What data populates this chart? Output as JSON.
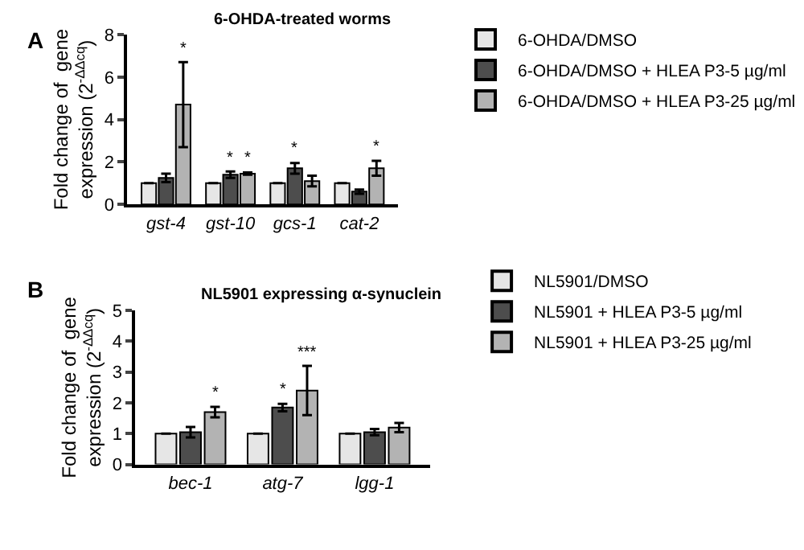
{
  "chart_data": [
    {
      "type": "bar",
      "title": "6-OHDA-treated worms",
      "ylabel": "Fold change of  gene expression (2$^{-ΔΔcq}$)",
      "annotations": [
        "A"
      ],
      "categories": [
        "gst-4",
        "gst-10",
        "gcs-1",
        "cat-2"
      ],
      "ylim": [
        0,
        8
      ],
      "yticks": [
        0,
        2,
        4,
        6,
        8
      ],
      "legend": "top right",
      "series": [
        {
          "name": "6-OHDA/DMSO",
          "color": "#e6e6e6",
          "values": [
            1.0,
            1.0,
            1.0,
            1.0
          ],
          "errors": [
            null,
            null,
            null,
            null
          ],
          "value_labels": [
            null,
            null,
            null,
            null
          ]
        },
        {
          "name": "6-OHDA/DMSO + HLEA P3-5 µg/ml",
          "color": "#4d4d4d",
          "values": [
            1.25,
            1.4,
            1.7,
            0.6
          ],
          "errors": [
            0.2,
            0.15,
            0.25,
            0.1
          ],
          "value_labels": [
            null,
            "*",
            "*",
            null
          ]
        },
        {
          "name": "6-OHDA/DMSO + HLEA P3-25 µg/ml",
          "color": "#b3b3b3",
          "values": [
            4.7,
            1.45,
            1.1,
            1.7
          ],
          "errors": [
            2.0,
            0.05,
            0.25,
            0.35
          ],
          "value_labels": [
            "*",
            "*",
            null,
            "*"
          ]
        }
      ]
    },
    {
      "type": "bar",
      "title": "NL5901 expressing α-synuclein",
      "ylabel": "Fold change of  gene expression (2$^{-ΔΔcq}$)",
      "annotations": [
        "B"
      ],
      "categories": [
        "bec-1",
        "atg-7",
        "lgg-1"
      ],
      "ylim": [
        0,
        5
      ],
      "yticks": [
        0,
        1,
        2,
        3,
        4,
        5
      ],
      "legend": "top right",
      "series": [
        {
          "name": "NL5901/DMSO",
          "color": "#e6e6e6",
          "values": [
            1.0,
            1.0,
            1.0
          ],
          "errors": [
            null,
            null,
            null
          ],
          "value_labels": [
            null,
            null,
            null
          ]
        },
        {
          "name": "NL5901 + HLEA P3-5 µg/ml",
          "color": "#4d4d4d",
          "values": [
            1.05,
            1.85,
            1.05
          ],
          "errors": [
            0.17,
            0.12,
            0.1
          ],
          "value_labels": [
            null,
            "*",
            null
          ]
        },
        {
          "name": "NL5901 + HLEA P3-25 µg/ml",
          "color": "#b3b3b3",
          "values": [
            1.7,
            2.4,
            1.2
          ],
          "errors": [
            0.17,
            0.8,
            0.15
          ],
          "value_labels": [
            "*",
            "***",
            null
          ]
        }
      ]
    }
  ]
}
